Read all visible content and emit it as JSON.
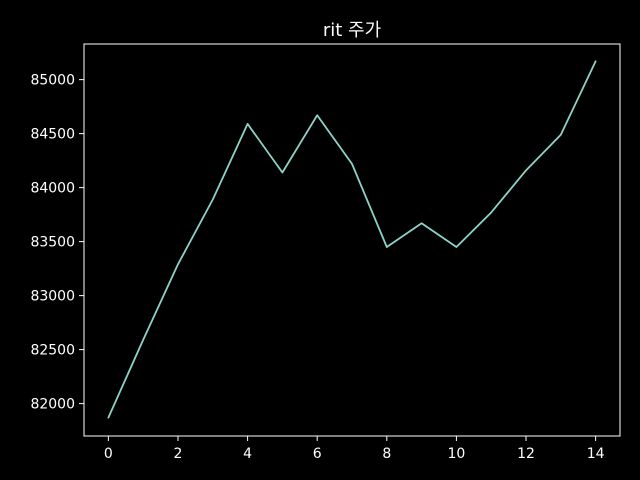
{
  "chart_data": {
    "type": "line",
    "title": "rit 주가",
    "xlabel": "",
    "ylabel": "",
    "x": [
      0,
      1,
      2,
      3,
      4,
      5,
      6,
      7,
      8,
      9,
      10,
      11,
      12,
      13,
      14
    ],
    "series": [
      {
        "values": [
          81870,
          82590,
          83290,
          83890,
          84590,
          84140,
          84670,
          84220,
          83450,
          83670,
          83450,
          83770,
          84160,
          84490,
          85170
        ],
        "color": "#8dd3c7"
      }
    ],
    "xlim": [
      -0.7,
      14.7
    ],
    "ylim": [
      81700,
      85330
    ],
    "x_ticks": [
      0,
      2,
      4,
      6,
      8,
      10,
      12,
      14
    ],
    "y_ticks": [
      82000,
      82500,
      83000,
      83500,
      84000,
      84500,
      85000
    ],
    "x_tick_labels": [
      "0",
      "2",
      "4",
      "6",
      "8",
      "10",
      "12",
      "14"
    ],
    "y_tick_labels": [
      "82000",
      "82500",
      "83000",
      "83500",
      "84000",
      "84500",
      "85000"
    ],
    "grid": false,
    "legend": "none",
    "background_color": "#000000",
    "axes_color": "#ffffff",
    "text_color": "#ffffff"
  }
}
